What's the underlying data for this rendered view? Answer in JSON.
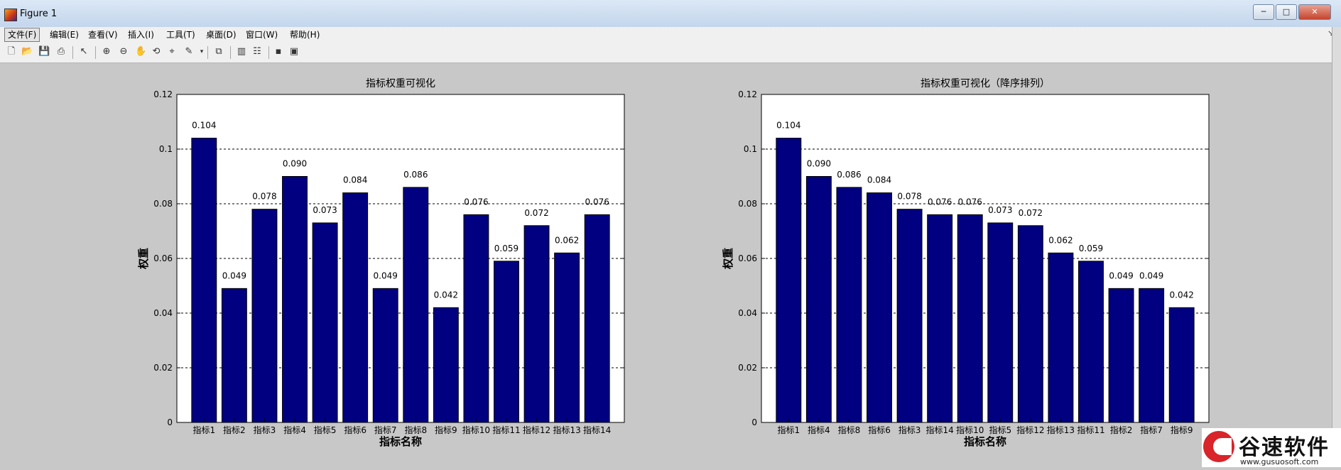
{
  "window": {
    "title": "Figure 1",
    "controls": [
      "─",
      "□",
      "✕"
    ]
  },
  "menu": {
    "items": [
      "文件(F)",
      "编辑(E)",
      "查看(V)",
      "插入(I)",
      "工具(T)",
      "桌面(D)",
      "窗口(W)",
      "帮助(H)"
    ],
    "dock_arrow": "↘"
  },
  "toolbar": {
    "icons": [
      "new-figure-icon",
      "open-file-icon",
      "save-icon",
      "print-icon",
      "pointer-icon",
      "zoom-in-icon",
      "zoom-out-icon",
      "pan-icon",
      "rotate-3d-icon",
      "data-cursor-icon",
      "brush-icon",
      "link-plot-icon",
      "colorbar-icon",
      "legend-icon",
      "hide-tools-icon",
      "show-tools-icon"
    ]
  },
  "chart_data": [
    {
      "type": "bar",
      "title": "指标权重可视化",
      "xlabel": "指标名称",
      "ylabel": "权重",
      "ylim": [
        0,
        0.12
      ],
      "yticks": [
        "0",
        "0.02",
        "0.04",
        "0.06",
        "0.08",
        "0.1",
        "0.12"
      ],
      "grid": "horizontal dashed",
      "bar_color": "#000080",
      "categories": [
        "指标1",
        "指标2",
        "指标3",
        "指标4",
        "指标5",
        "指标6",
        "指标7",
        "指标8",
        "指标9",
        "指标10",
        "指标11",
        "指标12",
        "指标13",
        "指标14"
      ],
      "values": [
        0.104,
        0.049,
        0.078,
        0.09,
        0.073,
        0.084,
        0.049,
        0.086,
        0.042,
        0.076,
        0.059,
        0.072,
        0.062,
        0.076
      ],
      "labels": [
        "0.104",
        "0.049",
        "0.078",
        "0.090",
        "0.073",
        "0.084",
        "0.049",
        "0.086",
        "0.042",
        "0.076",
        "0.059",
        "0.072",
        "0.062",
        "0.076"
      ]
    },
    {
      "type": "bar",
      "title": "指标权重可视化（降序排列）",
      "xlabel": "指标名称",
      "ylabel": "权重",
      "ylim": [
        0,
        0.12
      ],
      "yticks": [
        "0",
        "0.02",
        "0.04",
        "0.06",
        "0.08",
        "0.1",
        "0.12"
      ],
      "grid": "horizontal dashed",
      "bar_color": "#000080",
      "categories": [
        "指标1",
        "指标4",
        "指标8",
        "指标6",
        "指标3",
        "指标14",
        "指标10",
        "指标5",
        "指标12",
        "指标13",
        "指标11",
        "指标2",
        "指标7",
        "指标9"
      ],
      "values": [
        0.104,
        0.09,
        0.086,
        0.084,
        0.078,
        0.076,
        0.076,
        0.073,
        0.072,
        0.062,
        0.059,
        0.049,
        0.049,
        0.042
      ],
      "labels": [
        "0.104",
        "0.090",
        "0.086",
        "0.084",
        "0.078",
        "0.076",
        "0.076",
        "0.073",
        "0.072",
        "0.062",
        "0.059",
        "0.049",
        "0.049",
        "0.042"
      ]
    }
  ],
  "watermark": {
    "name": "谷速软件",
    "url": "www.gusuosoft.com"
  }
}
